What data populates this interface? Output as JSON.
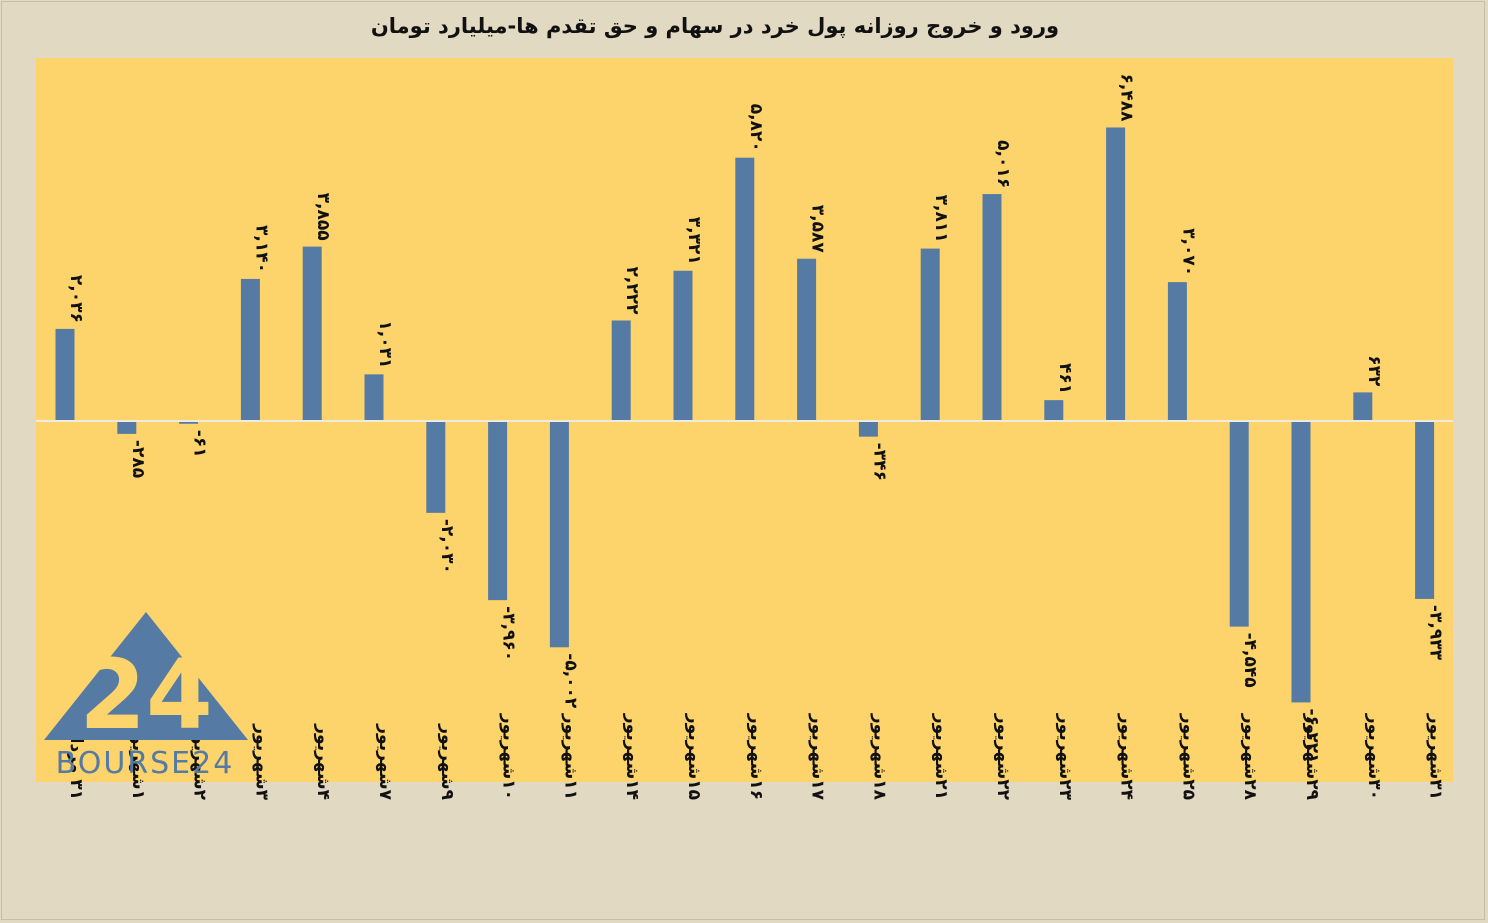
{
  "title": "ورود و خروج روزانه پول خرد در سهام و حق تقدم ها-میلیارد تومان",
  "logo": {
    "text": "BOURSE24",
    "mark": "24"
  },
  "colors": {
    "plot_bg": "#fdd46b",
    "bar": "#557aa3",
    "page_bg": "#e2d9c2",
    "logo": "#557aa3"
  },
  "chart_data": {
    "type": "bar",
    "title": "ورود و خروج روزانه پول خرد در سهام و حق تقدم ها-میلیارد تومان",
    "categories": [
      "۳۱ مرداد",
      "۱شهریور",
      "۲شهریور",
      "۳شهریور",
      "۴شهریور",
      "۷شهریور",
      "۹شهریور",
      "۱۰شهریور",
      "۱۱شهریور",
      "۱۴شهریور",
      "۱۵شهریور",
      "۱۶شهریور",
      "۱۷شهریور",
      "۱۸شهریور",
      "۲۱شهریور",
      "۲۲شهریور",
      "۲۳شهریور",
      "۲۴شهریور",
      "۲۵شهریور",
      "۲۸شهریور",
      "۲۹شهریور",
      "۳۰شهریور",
      "۳۱شهریور"
    ],
    "values": [
      2036,
      -285,
      -61,
      3140,
      3855,
      1031,
      -2030,
      -3960,
      -5002,
      2222,
      3321,
      5820,
      3587,
      -346,
      3811,
      5016,
      461,
      6488,
      3070,
      -4545,
      -6221,
      632,
      -3933
    ],
    "value_labels": [
      "۲,۰۳۶",
      "-۲۸۵",
      "-۶۱",
      "۳,۱۴۰",
      "۳,۸۵۵",
      "۱,۰۳۱",
      "-۲,۰۳۰",
      "-۳,۹۶۰",
      "-۵,۰۰۲",
      "۲,۲۲۲",
      "۳,۳۲۱",
      "۵,۸۲۰",
      "۳,۵۸۷",
      "-۳۴۶",
      "۳,۸۱۱",
      "۵,۰۱۶",
      "۴۶۱",
      "۶,۴۸۸",
      "۳,۰۷۰",
      "-۴,۵۴۵",
      "-۶,۲۲۱",
      "۶۳۲",
      "-۳,۹۳۳"
    ],
    "grid": false,
    "legend": "none"
  }
}
